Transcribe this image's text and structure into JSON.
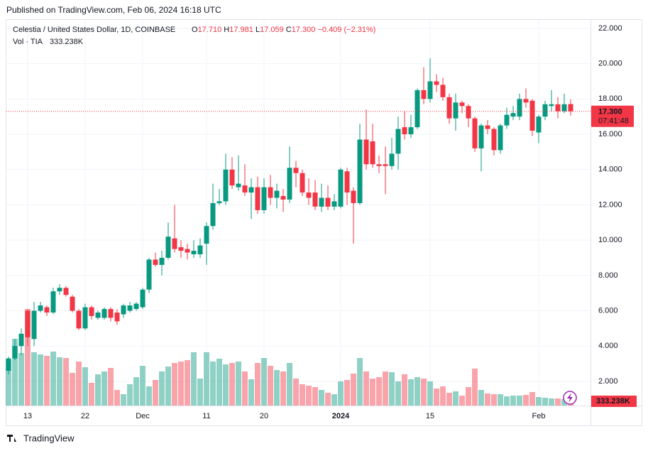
{
  "published": "Published on TradingView.com, Feb 06, 2024 16:18 UTC",
  "footer": "TradingView",
  "chart_data": {
    "type": "candlestick",
    "title": "Celestia / United States Dollar, 1D, COINBASE",
    "legend_values": {
      "o": "O",
      "open": "17.710",
      "h": "H",
      "high": "17.981",
      "l": "L",
      "low": "17.059",
      "c": "C",
      "close": "17.300",
      "change": "−0.409 (−2.31%)"
    },
    "last_price_label": "17.300",
    "countdown": "07:41:48",
    "up_color": "#089981",
    "down_color": "#f23645",
    "categories": [
      null,
      null,
      null,
      "13",
      null,
      null,
      null,
      null,
      null,
      null,
      null,
      null,
      "22",
      null,
      null,
      null,
      null,
      null,
      null,
      null,
      null,
      "Dec",
      null,
      null,
      null,
      null,
      null,
      null,
      null,
      null,
      null,
      "11",
      null,
      null,
      null,
      null,
      null,
      null,
      null,
      null,
      "20",
      null,
      null,
      null,
      null,
      null,
      null,
      null,
      null,
      null,
      null,
      null,
      "2024",
      null,
      null,
      null,
      null,
      null,
      null,
      null,
      null,
      null,
      null,
      null,
      null,
      null,
      "15",
      null,
      null,
      null,
      null,
      null,
      null,
      null,
      null,
      null,
      null,
      null,
      null,
      null,
      null,
      null,
      null,
      "Feb",
      null,
      null,
      null,
      null,
      null
    ],
    "open": [
      2.6,
      3.3,
      4.0,
      6.0,
      4.4,
      6.0,
      6.2,
      5.9,
      7.1,
      7.3,
      6.8,
      6.0,
      5.0,
      6.2,
      5.6,
      5.6,
      6.1,
      5.9,
      5.8,
      6.0,
      6.1,
      6.2,
      7.2,
      8.9,
      8.6,
      9.0,
      10.1,
      9.6,
      9.5,
      9.2,
      9.2,
      9.8,
      10.8,
      12.1,
      12.2,
      14.0,
      13.0,
      13.1,
      12.7,
      13.0,
      11.7,
      13.0,
      12.4,
      12.5,
      12.3,
      14.1,
      13.8,
      12.7,
      12.7,
      11.9,
      12.4,
      11.9,
      11.9,
      13.9,
      12.8,
      12.1,
      15.7,
      15.6,
      14.3,
      14.3,
      14.2,
      14.9,
      16.4,
      16.0,
      16.4,
      18.5,
      18.0,
      19.0,
      18.8,
      18.1,
      16.9,
      17.8,
      17.6,
      16.9,
      15.2,
      16.5,
      16.3,
      15.1,
      16.5,
      17.0,
      17.0,
      18.0,
      17.9,
      16.1,
      17.0,
      17.6,
      17.7,
      17.3,
      17.71
    ],
    "high": [
      3.4,
      4.4,
      5.0,
      6.1,
      6.5,
      6.5,
      6.3,
      7.3,
      7.5,
      7.4,
      6.9,
      6.1,
      6.4,
      6.3,
      6.0,
      6.2,
      6.2,
      6.1,
      6.4,
      6.5,
      6.5,
      7.3,
      9.0,
      9.3,
      9.4,
      11.0,
      12.0,
      10.0,
      9.8,
      10.0,
      10.1,
      11.0,
      13.2,
      12.9,
      14.9,
      14.7,
      14.8,
      14.3,
      13.5,
      13.6,
      13.5,
      13.7,
      13.2,
      12.9,
      15.3,
      14.5,
      14.0,
      13.5,
      13.4,
      13.2,
      13.1,
      12.6,
      14.1,
      14.1,
      13.0,
      16.6,
      17.4,
      16.6,
      14.8,
      15.3,
      15.8,
      17.0,
      17.3,
      17.1,
      18.6,
      19.8,
      20.3,
      19.4,
      19.2,
      18.3,
      18.3,
      17.9,
      17.7,
      17.0,
      16.6,
      16.8,
      16.4,
      16.6,
      17.5,
      17.6,
      18.3,
      18.6,
      18.0,
      17.1,
      17.9,
      18.5,
      18.1,
      18.3,
      17.981
    ],
    "low": [
      2.4,
      3.2,
      3.5,
      4.0,
      4.0,
      5.9,
      5.7,
      5.8,
      6.9,
      6.8,
      5.9,
      4.9,
      4.9,
      5.5,
      5.5,
      5.5,
      5.4,
      5.2,
      5.6,
      5.9,
      6.0,
      6.1,
      7.0,
      8.5,
      8.0,
      8.9,
      9.3,
      9.0,
      8.9,
      9.0,
      9.0,
      8.6,
      10.6,
      12.0,
      12.0,
      12.9,
      12.8,
      12.5,
      11.2,
      11.5,
      11.5,
      12.0,
      11.8,
      11.6,
      12.1,
      13.0,
      12.5,
      12.0,
      11.7,
      11.6,
      11.7,
      11.7,
      11.8,
      12.0,
      9.8,
      12.0,
      14.0,
      14.1,
      13.8,
      12.6,
      14.0,
      14.0,
      15.7,
      15.8,
      16.3,
      17.7,
      17.8,
      18.4,
      17.9,
      16.6,
      16.2,
      17.2,
      16.4,
      15.0,
      13.9,
      16.0,
      14.8,
      14.9,
      16.3,
      16.8,
      16.8,
      17.5,
      15.9,
      15.5,
      16.8,
      17.3,
      16.9,
      17.2,
      17.059
    ],
    "close": [
      3.3,
      4.0,
      4.7,
      4.5,
      6.0,
      6.3,
      5.9,
      7.1,
      7.3,
      6.9,
      6.0,
      5.0,
      6.2,
      5.7,
      5.9,
      6.1,
      5.6,
      5.4,
      6.3,
      6.3,
      6.4,
      7.2,
      8.9,
      8.6,
      9.0,
      10.2,
      9.5,
      9.4,
      9.3,
      9.4,
      9.7,
      10.8,
      12.1,
      12.2,
      14.0,
      13.1,
      13.2,
      12.7,
      13.0,
      11.7,
      13.0,
      12.4,
      12.8,
      12.3,
      14.1,
      13.8,
      12.7,
      12.4,
      11.9,
      12.4,
      11.9,
      12.2,
      14.0,
      12.7,
      12.1,
      15.7,
      14.3,
      14.3,
      14.2,
      14.2,
      14.9,
      16.3,
      16.0,
      16.4,
      18.5,
      18.0,
      19.0,
      18.8,
      18.1,
      16.9,
      17.8,
      17.6,
      16.9,
      15.2,
      16.5,
      16.3,
      15.1,
      16.5,
      17.1,
      17.2,
      18.0,
      17.8,
      16.2,
      17.0,
      17.7,
      17.7,
      17.3,
      17.7,
      17.3
    ],
    "volume": {
      "name": "Vol · TIA",
      "values": [
        2560,
        3760,
        2960,
        5440,
        3000,
        2880,
        2800,
        3040,
        2720,
        2680,
        1840,
        2480,
        2160,
        1280,
        1760,
        1920,
        2120,
        880,
        640,
        1200,
        1600,
        2240,
        1080,
        1440,
        1920,
        2200,
        2400,
        2480,
        2560,
        3000,
        1520,
        3000,
        2480,
        2640,
        2320,
        2400,
        2480,
        1920,
        1480,
        2400,
        2680,
        2240,
        2000,
        1920,
        2400,
        1520,
        1200,
        1120,
        1040,
        880,
        720,
        640,
        1360,
        1440,
        1800,
        2680,
        1920,
        1520,
        1600,
        1920,
        1880,
        1360,
        1760,
        1480,
        1600,
        1520,
        1360,
        960,
        1080,
        720,
        800,
        560,
        1040,
        2080,
        880,
        680,
        640,
        640,
        520,
        560,
        560,
        600,
        760,
        480,
        440,
        400,
        400,
        360,
        333.238
      ],
      "value_labels": [
        null,
        null,
        null,
        null,
        null,
        null,
        null,
        null,
        null,
        null,
        null,
        null,
        null,
        null,
        null,
        null,
        null,
        null,
        null,
        null,
        null,
        null,
        null,
        null,
        null,
        null,
        null,
        null,
        null,
        null,
        null,
        null,
        null,
        null,
        null,
        null,
        null,
        null,
        null,
        null,
        null,
        null,
        null,
        null,
        null,
        null,
        null,
        null,
        null,
        null,
        null,
        null,
        null,
        null,
        null,
        null,
        null,
        null,
        null,
        null,
        null,
        null,
        null,
        null,
        null,
        null,
        null,
        null,
        null,
        null,
        null,
        null,
        null,
        null,
        null,
        null,
        null,
        null,
        null,
        null,
        null,
        null,
        null,
        null,
        null,
        null,
        null,
        null,
        "333.238K"
      ]
    },
    "ylim": [
      0.63,
      22.48
    ],
    "yticks": [
      {
        "value": 2,
        "label": "2.000"
      },
      {
        "value": 4,
        "label": "4.000"
      },
      {
        "value": 6,
        "label": "6.000"
      },
      {
        "value": 8,
        "label": "8.000"
      },
      {
        "value": 10,
        "label": "10.000"
      },
      {
        "value": 12,
        "label": "12.000"
      },
      {
        "value": 14,
        "label": "14.000"
      },
      {
        "value": 16,
        "label": "16.000"
      },
      {
        "value": 18,
        "label": "18.000"
      },
      {
        "value": 20,
        "label": "20.000"
      },
      {
        "value": 22,
        "label": "22.000"
      }
    ],
    "grid": true
  }
}
